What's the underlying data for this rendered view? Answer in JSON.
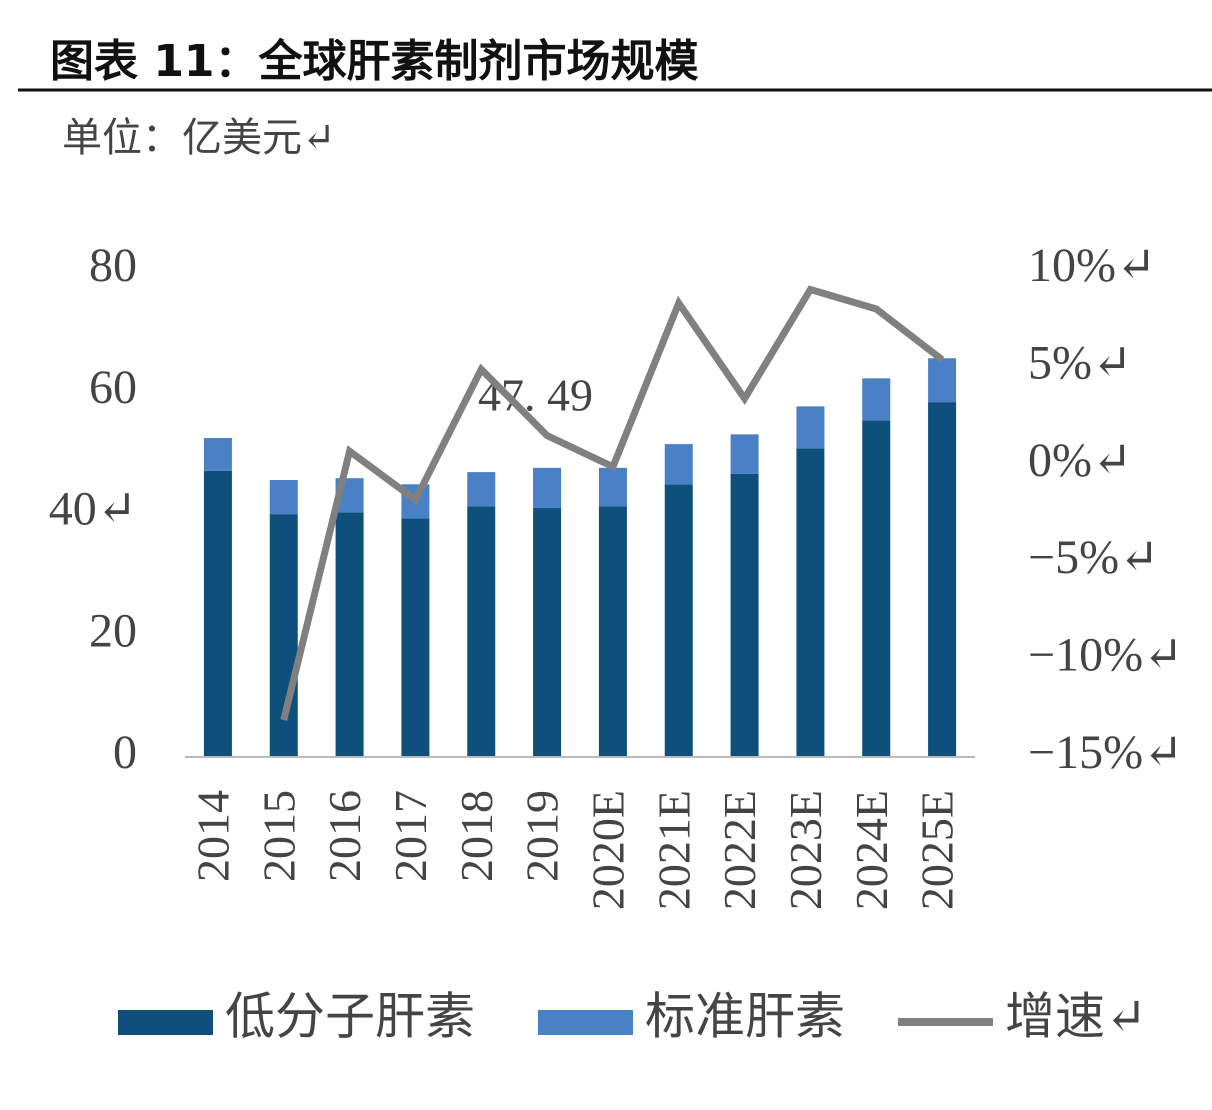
{
  "chart_data": {
    "type": "bar",
    "title": "图表 11：全球肝素制剂市场规模",
    "subtitle": "单位：亿美元↵",
    "categories": [
      "2014",
      "2015",
      "2016",
      "2017",
      "2018",
      "2019",
      "2020E",
      "2021E",
      "2022E",
      "2023E",
      "2024E",
      "2025E"
    ],
    "series": [
      {
        "name": "低分子肝素",
        "color": "#0e4f7b",
        "values": [
          47.0,
          39.9,
          40.2,
          39.2,
          41.2,
          40.9,
          41.2,
          44.8,
          46.5,
          50.7,
          55.3,
          58.3
        ]
      },
      {
        "name": "标准肝素",
        "color": "#4a80c6",
        "values": [
          5.4,
          5.6,
          5.6,
          5.6,
          5.6,
          6.6,
          6.3,
          6.6,
          6.5,
          6.9,
          6.9,
          7.2
        ]
      },
      {
        "name": "增速↵",
        "type": "line",
        "axis": "y2",
        "color": "#808080",
        "values": [
          null,
          -13.1,
          0.7,
          -1.8,
          4.9,
          1.5,
          -0.1,
          8.3,
          3.4,
          9.0,
          8.0,
          5.4
        ]
      }
    ],
    "annotations": [
      "47. 49"
    ],
    "ylim": [
      0,
      80
    ],
    "yticks": [
      0,
      20,
      {
        "value": 40,
        "label": "40↵"
      },
      60,
      80
    ],
    "y2lim": [
      -15,
      10
    ],
    "y2ticks": [
      {
        "value": -15,
        "label": "−15%↵"
      },
      {
        "value": -10,
        "label": "−10%↵"
      },
      {
        "value": -5,
        "label": "−5%↵"
      },
      {
        "value": 0,
        "label": "0%↵"
      },
      {
        "value": 5,
        "label": "5%↵"
      },
      {
        "value": 10,
        "label": "10%↵"
      }
    ],
    "stacked": true,
    "grid": false,
    "legend": "bottom"
  }
}
